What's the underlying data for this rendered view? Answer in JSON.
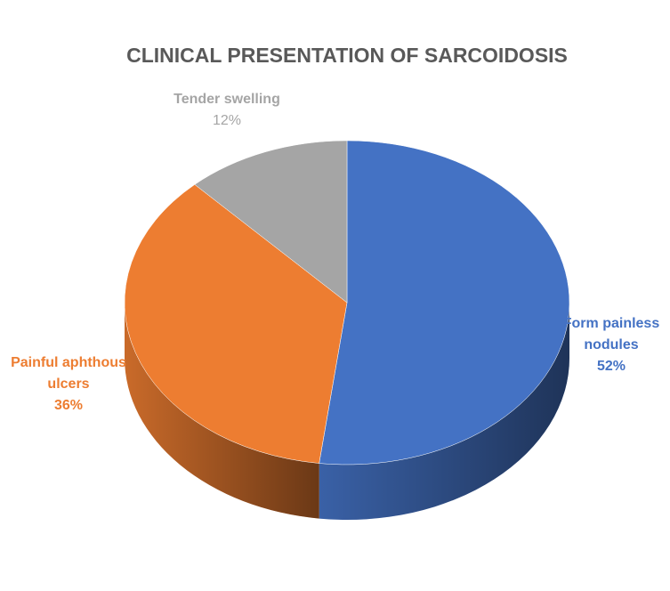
{
  "chart_data": {
    "type": "pie",
    "title": "CLINICAL PRESENTATION OF SARCOIDOSIS",
    "categories": [
      "Form painless nodules",
      "Painful aphthous ulcers",
      "Tender swelling"
    ],
    "values": [
      52,
      36,
      12
    ],
    "value_labels": [
      "52%",
      "36%",
      "12%"
    ],
    "colors": [
      "#4472c4",
      "#ed7d31",
      "#a5a5a5"
    ]
  }
}
